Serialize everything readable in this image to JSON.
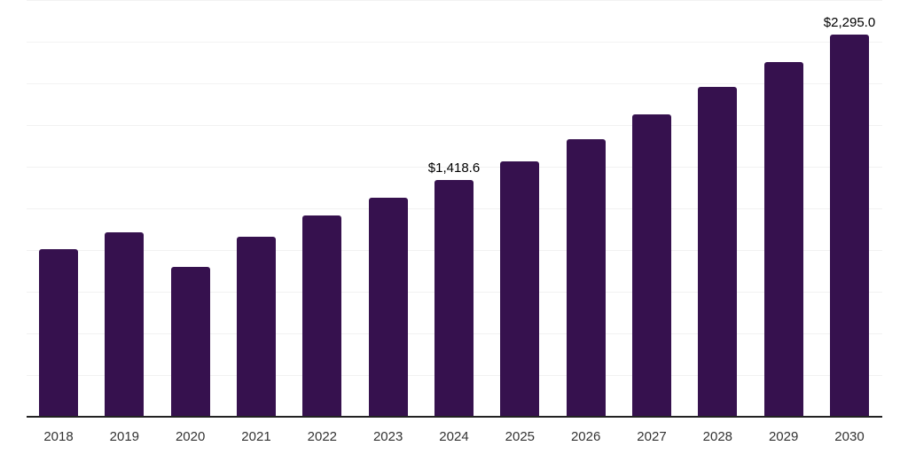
{
  "chart_data": {
    "type": "bar",
    "title": "",
    "xlabel": "",
    "ylabel": "",
    "categories": [
      "2018",
      "2019",
      "2020",
      "2021",
      "2022",
      "2023",
      "2024",
      "2025",
      "2026",
      "2027",
      "2028",
      "2029",
      "2030"
    ],
    "values": [
      1005,
      1105,
      900,
      1080,
      1210,
      1313,
      1418.6,
      1532,
      1667,
      1815,
      1978,
      2126,
      2295.0
    ],
    "data_labels": [
      null,
      null,
      null,
      null,
      null,
      null,
      "$1,418.6",
      null,
      null,
      null,
      null,
      null,
      "$2,295.0"
    ],
    "ylim": [
      0,
      2500
    ],
    "grid_step": 250,
    "grid": "horizontal",
    "legend_position": "none",
    "y_axis_labels_visible": false,
    "colors": {
      "bar": "#36114E",
      "gridline": "#f2f2f2",
      "axis_line": "#222222",
      "tick_label": "#333333",
      "data_label": "#000000",
      "background": "#ffffff"
    }
  }
}
